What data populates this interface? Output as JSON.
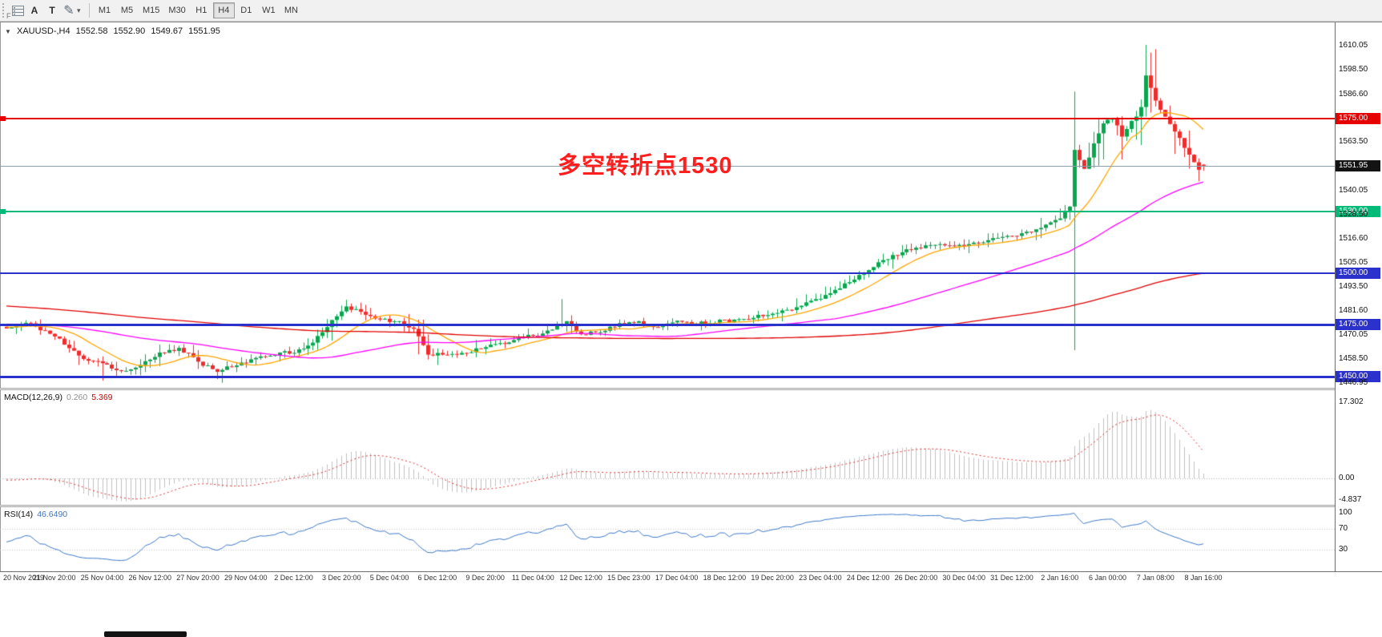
{
  "toolbar": {
    "left_label": "F",
    "buttons": [
      {
        "id": "annotate",
        "label": "A"
      },
      {
        "id": "text",
        "label": "T"
      }
    ],
    "timeframes": [
      "M1",
      "M5",
      "M15",
      "M30",
      "H1",
      "H4",
      "D1",
      "W1",
      "MN"
    ],
    "active_timeframe": "H4"
  },
  "symbol_bar": {
    "symbol": "XAUUSD-,H4",
    "open": "1552.58",
    "high": "1552.90",
    "low": "1549.67",
    "close": "1551.95"
  },
  "annotation": {
    "text": "多空转折点1530",
    "color": "#ff1d1d"
  },
  "price_axis": {
    "ticks": [
      {
        "v": 1610.05,
        "label": "1610.05"
      },
      {
        "v": 1598.5,
        "label": "1598.50"
      },
      {
        "v": 1586.6,
        "label": "1586.60"
      },
      {
        "v": 1563.5,
        "label": "1563.50"
      },
      {
        "v": 1540.05,
        "label": "1540.05"
      },
      {
        "v": 1528.5,
        "label": "1528.50"
      },
      {
        "v": 1516.6,
        "label": "1516.60"
      },
      {
        "v": 1505.05,
        "label": "1505.05"
      },
      {
        "v": 1493.5,
        "label": "1493.50"
      },
      {
        "v": 1481.6,
        "label": "1481.60"
      },
      {
        "v": 1470.05,
        "label": "1470.05"
      },
      {
        "v": 1458.5,
        "label": "1458.50"
      },
      {
        "v": 1446.95,
        "label": "1446.95"
      }
    ]
  },
  "hlines": [
    {
      "price": 1575.0,
      "label": "1575.00",
      "color": "#e60000",
      "width": 2,
      "edge_marker": true,
      "role": "level"
    },
    {
      "price": 1551.95,
      "label": "1551.95",
      "color": "#131313",
      "width": 1,
      "line_color": "#8ea0ac",
      "role": "bid"
    },
    {
      "price": 1530.0,
      "label": "1530.00",
      "color": "#00bb77",
      "width": 2,
      "edge_marker": true,
      "role": "level"
    },
    {
      "price": 1500.0,
      "label": "1500.00",
      "color": "#2b32cc",
      "width": 2,
      "role": "level"
    },
    {
      "price": 1475.0,
      "label": "1475.00",
      "color": "#2b32cc",
      "width": 3,
      "role": "level"
    },
    {
      "price": 1450.0,
      "label": "1450.00",
      "color": "#2b32cc",
      "width": 3,
      "role": "level"
    }
  ],
  "indicators": {
    "macd": {
      "label": "MACD(12,26,9)",
      "value_main": "0.260",
      "value_signal": "5.369",
      "axis_ticks": [
        {
          "v": 17.302,
          "label": "17.302"
        },
        {
          "v": 0,
          "label": "0.00"
        },
        {
          "v": -4.837,
          "label": "-4.837"
        }
      ],
      "histogram_color": "#c0c0c0",
      "signal_color": "#e03030"
    },
    "rsi": {
      "label": "RSI(14)",
      "value": "46.6490",
      "axis_ticks": [
        {
          "v": 100,
          "label": "100"
        },
        {
          "v": 70,
          "label": "70"
        },
        {
          "v": 30,
          "label": "30"
        }
      ],
      "levels": [
        70,
        30
      ],
      "line_color": "#3e77c9"
    }
  },
  "time_axis": [
    "20 Nov 2019",
    "21 Nov 20:00",
    "25 Nov 04:00",
    "26 Nov 12:00",
    "27 Nov 20:00",
    "29 Nov 04:00",
    "2 Dec 12:00",
    "3 Dec 20:00",
    "5 Dec 04:00",
    "6 Dec 12:00",
    "9 Dec 20:00",
    "11 Dec 04:00",
    "12 Dec 12:00",
    "15 Dec 23:00",
    "17 Dec 04:00",
    "18 Dec 12:00",
    "19 Dec 20:00",
    "23 Dec 04:00",
    "24 Dec 12:00",
    "26 Dec 20:00",
    "30 Dec 04:00",
    "31 Dec 12:00",
    "2 Jan 16:00",
    "6 Jan 00:00",
    "7 Jan 08:00",
    "8 Jan 16:00"
  ],
  "chart_data": {
    "type": "candlestick",
    "symbol": "XAUUSD",
    "timeframe": "H4",
    "visible_range": [
      "20 Nov 2019",
      "8 Jan 16:00"
    ],
    "price_range": [
      1444.5,
      1621.5
    ],
    "last_candle": {
      "open": 1552.58,
      "high": 1552.9,
      "low": 1549.67,
      "close": 1551.95
    },
    "horizontal_levels": [
      1575.0,
      1530.0,
      1500.0,
      1475.0,
      1450.0
    ],
    "up_color": "#0aa64f",
    "down_color": "#ee2c2c",
    "close_anchors": [
      [
        0,
        1473.5
      ],
      [
        4,
        1476
      ],
      [
        8,
        1472
      ],
      [
        12,
        1466
      ],
      [
        16,
        1459
      ],
      [
        20,
        1456
      ],
      [
        24,
        1452.5
      ],
      [
        28,
        1456
      ],
      [
        32,
        1461
      ],
      [
        36,
        1464
      ],
      [
        40,
        1457
      ],
      [
        44,
        1453
      ],
      [
        48,
        1455
      ],
      [
        52,
        1459
      ],
      [
        56,
        1461
      ],
      [
        60,
        1462
      ],
      [
        64,
        1466
      ],
      [
        68,
        1477
      ],
      [
        71,
        1483.5
      ],
      [
        74,
        1481
      ],
      [
        78,
        1478
      ],
      [
        82,
        1476.5
      ],
      [
        85,
        1473
      ],
      [
        88,
        1461
      ],
      [
        92,
        1460.5
      ],
      [
        96,
        1462
      ],
      [
        100,
        1464
      ],
      [
        104,
        1466
      ],
      [
        108,
        1469
      ],
      [
        112,
        1471
      ],
      [
        115,
        1474.5
      ],
      [
        117,
        1477
      ],
      [
        120,
        1470
      ],
      [
        124,
        1472
      ],
      [
        128,
        1475.5
      ],
      [
        132,
        1476
      ],
      [
        136,
        1474
      ],
      [
        140,
        1477
      ],
      [
        144,
        1475.5
      ],
      [
        148,
        1476.5
      ],
      [
        152,
        1477
      ],
      [
        156,
        1478.5
      ],
      [
        160,
        1480.5
      ],
      [
        164,
        1483
      ],
      [
        168,
        1486
      ],
      [
        172,
        1490
      ],
      [
        176,
        1496
      ],
      [
        180,
        1502
      ],
      [
        184,
        1507
      ],
      [
        188,
        1511
      ],
      [
        192,
        1513.5
      ],
      [
        196,
        1514
      ],
      [
        200,
        1512.5
      ],
      [
        204,
        1515.5
      ],
      [
        208,
        1517
      ],
      [
        212,
        1519
      ],
      [
        216,
        1522
      ],
      [
        220,
        1527
      ],
      [
        222,
        1532
      ],
      [
        223,
        1560
      ],
      [
        225,
        1550
      ],
      [
        227,
        1562
      ],
      [
        229,
        1572
      ],
      [
        231,
        1576
      ],
      [
        233,
        1567
      ],
      [
        235,
        1573
      ],
      [
        237,
        1580
      ],
      [
        238,
        1596
      ],
      [
        239,
        1589
      ],
      [
        241,
        1580
      ],
      [
        243,
        1572
      ],
      [
        245,
        1565
      ],
      [
        247,
        1557
      ],
      [
        249,
        1551
      ],
      [
        250,
        1551.95
      ]
    ],
    "wick_overrides": [
      [
        20,
        "l",
        1448.0
      ],
      [
        45,
        "l",
        1446.95
      ],
      [
        88,
        "l",
        1458.2
      ],
      [
        116,
        "h",
        1487.5
      ],
      [
        223,
        "h",
        1588.0
      ],
      [
        238,
        "h",
        1610.6
      ]
    ],
    "moving_averages": [
      {
        "period": 13,
        "color": "#ffa500"
      },
      {
        "period": 55,
        "color": "#ff00ff"
      },
      {
        "period": 175,
        "color": "#e00000"
      }
    ],
    "macd": {
      "fast": 12,
      "slow": 26,
      "signal": 9,
      "current_main": 0.26,
      "current_signal": 5.369,
      "axis_max": 17.302,
      "axis_min": -4.837
    },
    "rsi": {
      "period": 14,
      "current": 46.649,
      "levels": [
        30,
        70
      ]
    }
  }
}
